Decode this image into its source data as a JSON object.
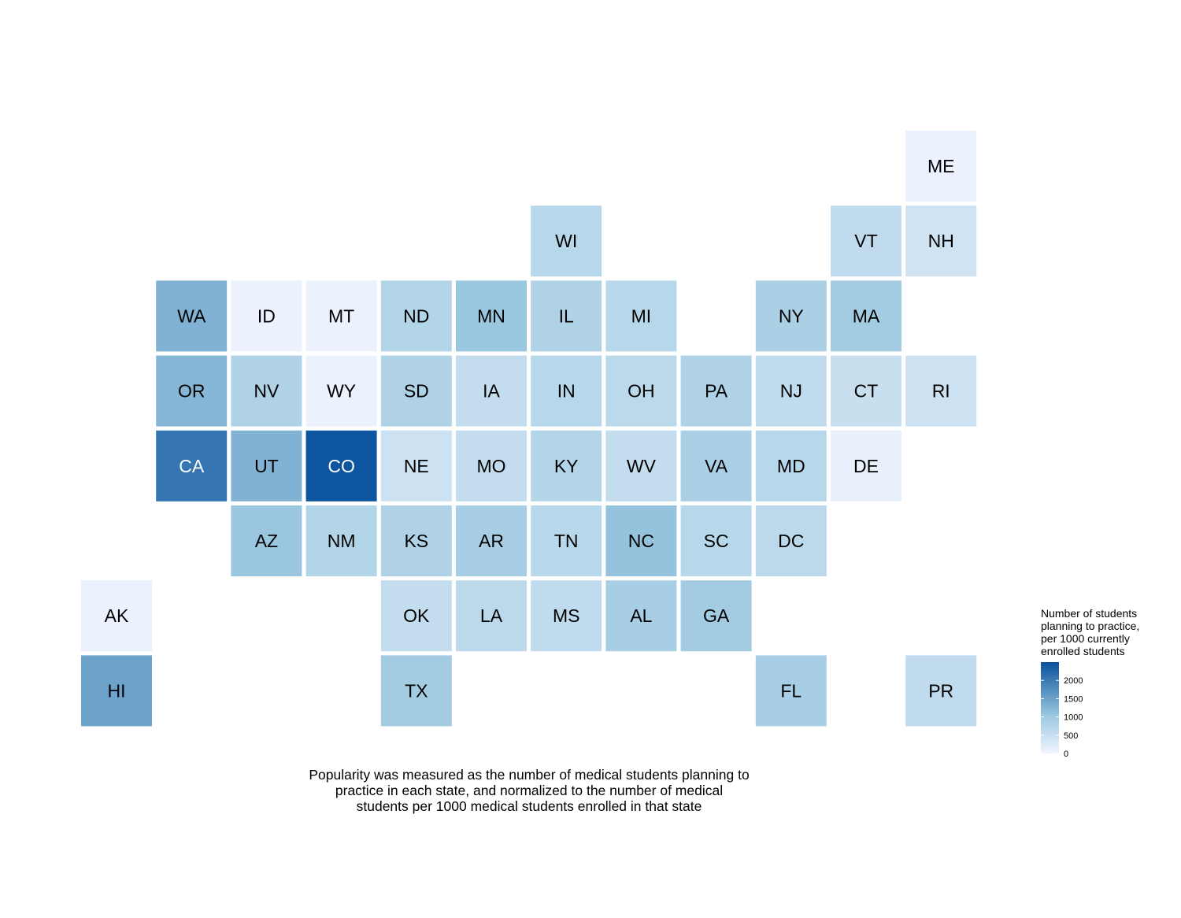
{
  "chart_data": {
    "type": "heatmap",
    "subtype": "tile-grid-map",
    "value_label": "Number of students planning to practice, per 1000 currently enrolled students",
    "color_scale": {
      "low": "#f0f4fe",
      "mid": "#9fcae1",
      "high": "#08519c",
      "domain": [
        0,
        2500
      ]
    },
    "legend": {
      "title_lines": [
        "Number of students",
        "planning to practice,",
        "per 1000 currently",
        "enrolled students"
      ],
      "ticks": [
        0,
        500,
        1000,
        1500,
        2000
      ],
      "tick_labels": [
        "0",
        "500",
        "1000",
        "1500",
        "2000"
      ],
      "position": "right"
    },
    "tiles": [
      {
        "state": "ME",
        "col": 11,
        "row": 0,
        "value": 50
      },
      {
        "state": "WI",
        "col": 6,
        "row": 1,
        "value": 700
      },
      {
        "state": "VT",
        "col": 10,
        "row": 1,
        "value": 600
      },
      {
        "state": "NH",
        "col": 11,
        "row": 1,
        "value": 400
      },
      {
        "state": "WA",
        "col": 1,
        "row": 2,
        "value": 1300
      },
      {
        "state": "ID",
        "col": 2,
        "row": 2,
        "value": 50
      },
      {
        "state": "MT",
        "col": 3,
        "row": 2,
        "value": 50
      },
      {
        "state": "ND",
        "col": 4,
        "row": 2,
        "value": 750
      },
      {
        "state": "MN",
        "col": 5,
        "row": 2,
        "value": 1050
      },
      {
        "state": "IL",
        "col": 6,
        "row": 2,
        "value": 800
      },
      {
        "state": "MI",
        "col": 7,
        "row": 2,
        "value": 700
      },
      {
        "state": "NY",
        "col": 9,
        "row": 2,
        "value": 850
      },
      {
        "state": "MA",
        "col": 10,
        "row": 2,
        "value": 950
      },
      {
        "state": "OR",
        "col": 1,
        "row": 3,
        "value": 1250
      },
      {
        "state": "NV",
        "col": 2,
        "row": 3,
        "value": 800
      },
      {
        "state": "WY",
        "col": 3,
        "row": 3,
        "value": 50
      },
      {
        "state": "SD",
        "col": 4,
        "row": 3,
        "value": 800
      },
      {
        "state": "IA",
        "col": 5,
        "row": 3,
        "value": 550
      },
      {
        "state": "IN",
        "col": 6,
        "row": 3,
        "value": 700
      },
      {
        "state": "OH",
        "col": 7,
        "row": 3,
        "value": 650
      },
      {
        "state": "PA",
        "col": 8,
        "row": 3,
        "value": 800
      },
      {
        "state": "NJ",
        "col": 9,
        "row": 3,
        "value": 600
      },
      {
        "state": "CT",
        "col": 10,
        "row": 3,
        "value": 500
      },
      {
        "state": "RI",
        "col": 11,
        "row": 3,
        "value": 450
      },
      {
        "state": "CA",
        "col": 1,
        "row": 4,
        "value": 2050
      },
      {
        "state": "UT",
        "col": 2,
        "row": 4,
        "value": 1300
      },
      {
        "state": "CO",
        "col": 3,
        "row": 4,
        "value": 2450
      },
      {
        "state": "NE",
        "col": 4,
        "row": 4,
        "value": 450
      },
      {
        "state": "MO",
        "col": 5,
        "row": 4,
        "value": 550
      },
      {
        "state": "KY",
        "col": 6,
        "row": 4,
        "value": 750
      },
      {
        "state": "WV",
        "col": 7,
        "row": 4,
        "value": 550
      },
      {
        "state": "VA",
        "col": 8,
        "row": 4,
        "value": 850
      },
      {
        "state": "MD",
        "col": 9,
        "row": 4,
        "value": 700
      },
      {
        "state": "DE",
        "col": 10,
        "row": 4,
        "value": 100
      },
      {
        "state": "AZ",
        "col": 2,
        "row": 5,
        "value": 1050
      },
      {
        "state": "NM",
        "col": 3,
        "row": 5,
        "value": 750
      },
      {
        "state": "KS",
        "col": 4,
        "row": 5,
        "value": 800
      },
      {
        "state": "AR",
        "col": 5,
        "row": 5,
        "value": 900
      },
      {
        "state": "TN",
        "col": 6,
        "row": 5,
        "value": 700
      },
      {
        "state": "NC",
        "col": 7,
        "row": 5,
        "value": 1100
      },
      {
        "state": "SC",
        "col": 8,
        "row": 5,
        "value": 700
      },
      {
        "state": "DC",
        "col": 9,
        "row": 5,
        "value": 650
      },
      {
        "state": "AK",
        "col": 0,
        "row": 6,
        "value": 50
      },
      {
        "state": "OK",
        "col": 4,
        "row": 6,
        "value": 550
      },
      {
        "state": "LA",
        "col": 5,
        "row": 6,
        "value": 650
      },
      {
        "state": "MS",
        "col": 6,
        "row": 6,
        "value": 600
      },
      {
        "state": "AL",
        "col": 7,
        "row": 6,
        "value": 900
      },
      {
        "state": "GA",
        "col": 8,
        "row": 6,
        "value": 950
      },
      {
        "state": "HI",
        "col": 0,
        "row": 7,
        "value": 1500
      },
      {
        "state": "TX",
        "col": 4,
        "row": 7,
        "value": 950
      },
      {
        "state": "FL",
        "col": 9,
        "row": 7,
        "value": 900
      },
      {
        "state": "PR",
        "col": 11,
        "row": 7,
        "value": 600
      }
    ]
  },
  "caption": {
    "lines": [
      "Popularity was measured as the number of medical students planning to",
      "practice in each state, and normalized to the number of medical",
      "students per 1000 medical students enrolled in that state"
    ]
  }
}
